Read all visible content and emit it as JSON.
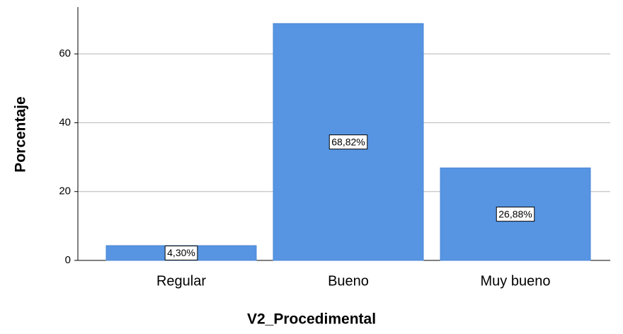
{
  "chart_data": {
    "type": "bar",
    "x_label": "V2_Procedimental",
    "y_label": "Porcentaje",
    "categories": [
      "Regular",
      "Bueno",
      "Muy bueno"
    ],
    "values": [
      4.3,
      68.82,
      26.88
    ],
    "value_labels": [
      "4,30%",
      "68,82%",
      "26,88%"
    ],
    "color": "#5795e3",
    "ylim": [
      0,
      73.6
    ],
    "yticks": [
      0,
      20,
      40,
      60
    ],
    "grid": true
  }
}
